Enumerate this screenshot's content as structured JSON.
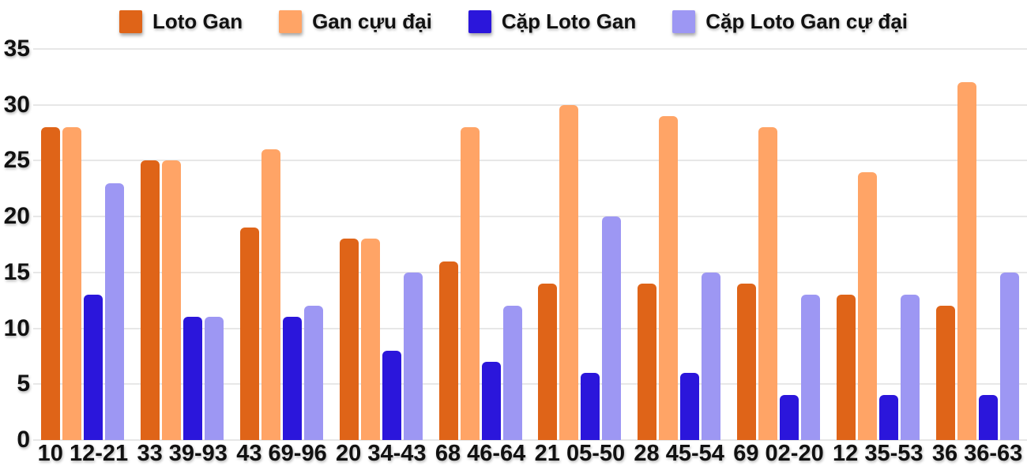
{
  "chart_data": {
    "type": "bar",
    "title": "",
    "xlabel": "",
    "ylabel": "",
    "categories": [
      "10 12-21",
      "33 39-93",
      "43 69-96",
      "20 34-43",
      "68 46-64",
      "21 05-50",
      "28 45-54",
      "69 02-20",
      "12 35-53",
      "36 36-63"
    ],
    "series": [
      {
        "name": "Loto Gan",
        "color": "#df6418",
        "values": [
          28,
          25,
          19,
          18,
          16,
          14,
          14,
          14,
          13,
          12
        ]
      },
      {
        "name": "Gan cựu đại",
        "color": "#ffa466",
        "values": [
          28,
          25,
          26,
          18,
          28,
          30,
          29,
          28,
          24,
          32
        ]
      },
      {
        "name": "Cặp Loto Gan",
        "color": "#2b16db",
        "values": [
          13,
          11,
          11,
          8,
          7,
          6,
          6,
          4,
          4,
          4
        ]
      },
      {
        "name": "Cặp Loto Gan cự đại",
        "color": "#9d97f3",
        "values": [
          23,
          11,
          12,
          15,
          12,
          20,
          15,
          13,
          13,
          15
        ]
      }
    ],
    "ylim": [
      0,
      35
    ],
    "yticks": [
      0,
      5,
      10,
      15,
      20,
      25,
      30,
      35
    ],
    "grid": true,
    "legend_position": "top"
  },
  "colors": {
    "background": "#ffffff",
    "text": "#111111",
    "gridline": "#e7e7e7"
  }
}
